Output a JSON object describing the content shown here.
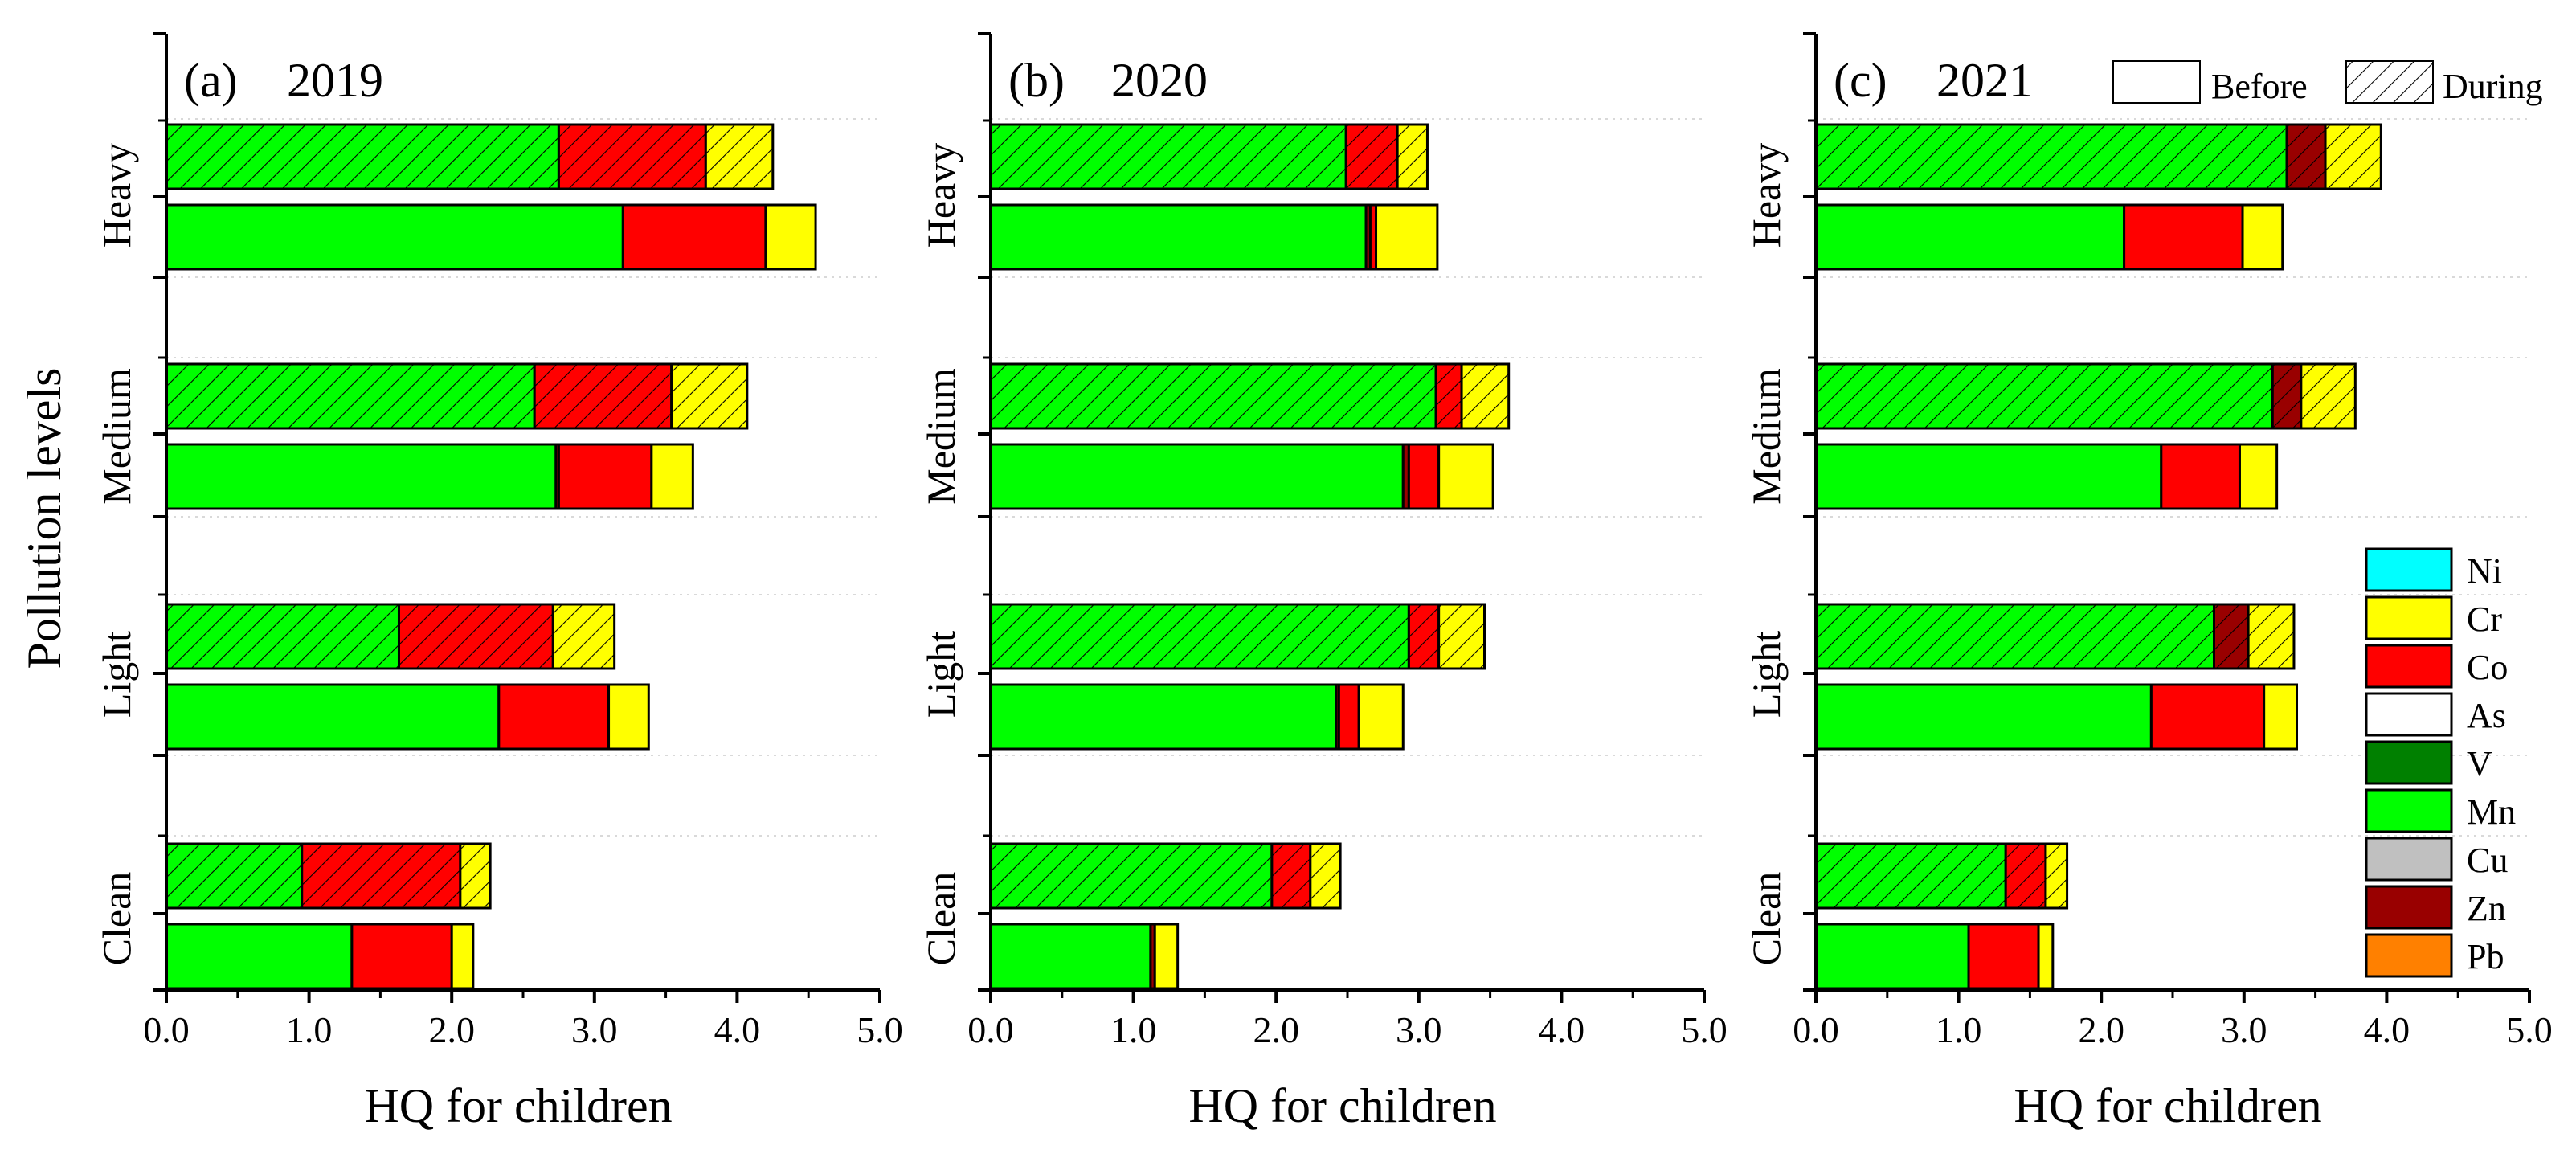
{
  "chart_data": {
    "type": "bar",
    "orientation": "horizontal",
    "stacked": true,
    "ylabel": "Pollution levels",
    "xlabel": "HQ for children",
    "categories": [
      "Heavy",
      "Medium",
      "Light",
      "Clean"
    ],
    "xlim": [
      0,
      5
    ],
    "xticks": [
      "0.0",
      "1.0",
      "2.0",
      "3.0",
      "4.0",
      "5.0"
    ],
    "components": [
      {
        "name": "Ni",
        "color": "#00FFFF"
      },
      {
        "name": "Cr",
        "color": "#FFFF00"
      },
      {
        "name": "Co",
        "color": "#FF0000"
      },
      {
        "name": "As",
        "color": "#FFFFFF"
      },
      {
        "name": "V",
        "color": "#008000"
      },
      {
        "name": "Mn",
        "color": "#00FF00"
      },
      {
        "name": "Cu",
        "color": "#C0C0C0"
      },
      {
        "name": "Zn",
        "color": "#990000"
      },
      {
        "name": "Pb",
        "color": "#FF8000"
      }
    ],
    "stack_order": [
      "Mn",
      "Zn",
      "Co",
      "Cr"
    ],
    "periods": [
      {
        "name": "Before",
        "pattern": "none"
      },
      {
        "name": "During",
        "pattern": "hatched"
      }
    ],
    "panels": [
      {
        "label": "(a)",
        "year": "2019",
        "bars": {
          "Heavy": {
            "During": {
              "Mn": 2.75,
              "Zn": 0.0,
              "Co": 1.03,
              "Cr": 0.47
            },
            "Before": {
              "Mn": 3.2,
              "Zn": 0.0,
              "Co": 1.0,
              "Cr": 0.35
            }
          },
          "Medium": {
            "During": {
              "Mn": 2.58,
              "Zn": 0.0,
              "Co": 0.96,
              "Cr": 0.53
            },
            "Before": {
              "Mn": 2.73,
              "Zn": 0.02,
              "Co": 0.65,
              "Cr": 0.29
            }
          },
          "Light": {
            "During": {
              "Mn": 1.63,
              "Zn": 0.0,
              "Co": 1.08,
              "Cr": 0.43
            },
            "Before": {
              "Mn": 2.33,
              "Zn": 0.0,
              "Co": 0.77,
              "Cr": 0.28
            }
          },
          "Clean": {
            "During": {
              "Mn": 0.95,
              "Zn": 0.0,
              "Co": 1.11,
              "Cr": 0.21
            },
            "Before": {
              "Mn": 1.3,
              "Zn": 0.0,
              "Co": 0.7,
              "Cr": 0.15
            }
          }
        }
      },
      {
        "label": "(b)",
        "year": "2020",
        "bars": {
          "Heavy": {
            "During": {
              "Mn": 2.49,
              "Zn": 0.0,
              "Co": 0.36,
              "Cr": 0.21
            },
            "Before": {
              "Mn": 2.63,
              "Zn": 0.03,
              "Co": 0.04,
              "Cr": 0.43
            }
          },
          "Medium": {
            "During": {
              "Mn": 3.12,
              "Zn": 0.0,
              "Co": 0.18,
              "Cr": 0.33
            },
            "Before": {
              "Mn": 2.89,
              "Zn": 0.04,
              "Co": 0.21,
              "Cr": 0.38
            }
          },
          "Light": {
            "During": {
              "Mn": 2.93,
              "Zn": 0.0,
              "Co": 0.21,
              "Cr": 0.32
            },
            "Before": {
              "Mn": 2.42,
              "Zn": 0.02,
              "Co": 0.14,
              "Cr": 0.31
            }
          },
          "Clean": {
            "During": {
              "Mn": 1.97,
              "Zn": 0.0,
              "Co": 0.27,
              "Cr": 0.21
            },
            "Before": {
              "Mn": 1.12,
              "Zn": 0.03,
              "Co": 0.0,
              "Cr": 0.16
            }
          }
        }
      },
      {
        "label": "(c)",
        "year": "2021",
        "bars": {
          "Heavy": {
            "During": {
              "Mn": 3.3,
              "Zn": 0.27,
              "Co": 0.0,
              "Cr": 0.39
            },
            "Before": {
              "Mn": 2.16,
              "Zn": 0.0,
              "Co": 0.83,
              "Cr": 0.28
            }
          },
          "Medium": {
            "During": {
              "Mn": 3.2,
              "Zn": 0.2,
              "Co": 0.0,
              "Cr": 0.38
            },
            "Before": {
              "Mn": 2.42,
              "Zn": 0.0,
              "Co": 0.55,
              "Cr": 0.26
            }
          },
          "Light": {
            "During": {
              "Mn": 2.79,
              "Zn": 0.24,
              "Co": 0.0,
              "Cr": 0.32
            },
            "Before": {
              "Mn": 2.35,
              "Zn": 0.0,
              "Co": 0.79,
              "Cr": 0.23
            }
          },
          "Clean": {
            "During": {
              "Mn": 1.33,
              "Zn": 0.0,
              "Co": 0.28,
              "Cr": 0.15
            },
            "Before": {
              "Mn": 1.07,
              "Zn": 0.0,
              "Co": 0.49,
              "Cr": 0.1
            }
          }
        }
      }
    ]
  }
}
